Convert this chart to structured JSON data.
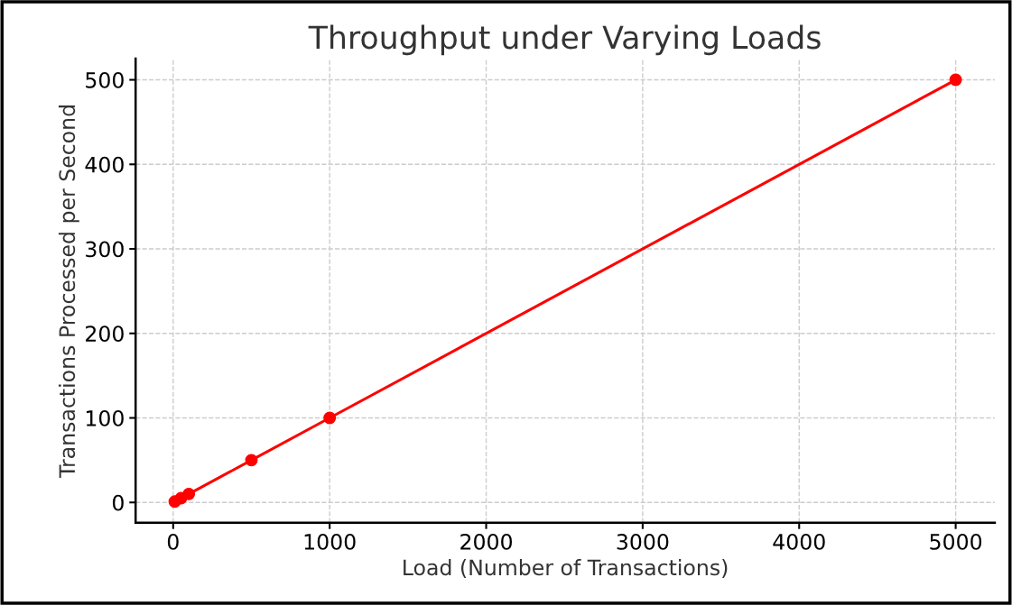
{
  "chart_data": {
    "type": "line",
    "title": "Throughput under Varying Loads",
    "xlabel": "Load (Number of Transactions)",
    "ylabel": "Transactions Processed per Second",
    "x": [
      10,
      50,
      100,
      500,
      1000,
      5000
    ],
    "series": [
      {
        "color": "#ff0000",
        "values": [
          1,
          5,
          10,
          50,
          100,
          500
        ]
      }
    ],
    "xlim": [
      -240,
      5250
    ],
    "ylim": [
      -24,
      525
    ],
    "xticks": [
      0,
      1000,
      2000,
      3000,
      4000,
      5000
    ],
    "yticks": [
      0,
      100,
      200,
      300,
      400,
      500
    ],
    "grid": true,
    "marker": "circle",
    "line_style": "solid"
  }
}
